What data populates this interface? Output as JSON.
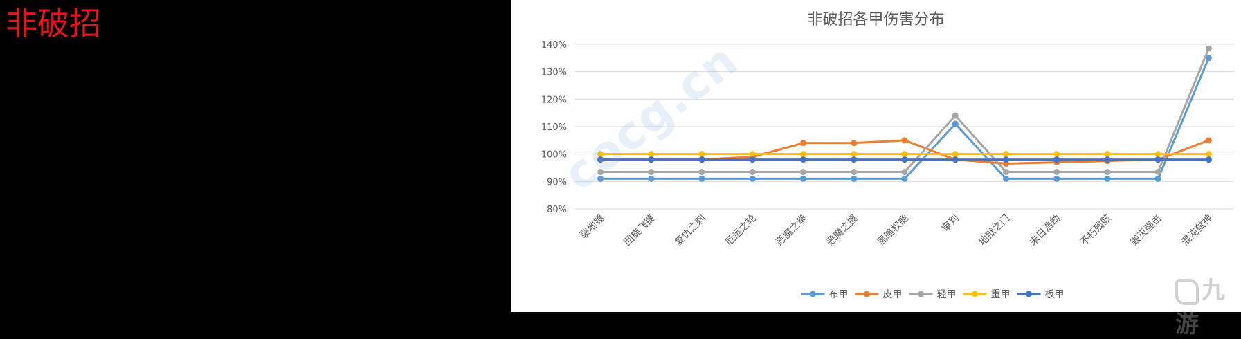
{
  "page": {
    "heading": "非破招",
    "watermark": "cocg.cn",
    "corner_logo": "九游"
  },
  "chart_data": {
    "type": "line",
    "title": "非破招各甲伤害分布",
    "xlabel": "",
    "ylabel": "",
    "categories": [
      "裂地锤",
      "回旋飞镰",
      "复仇之刺",
      "厄运之轮",
      "恶魔之拳",
      "恶魔之握",
      "黑暗权能",
      "审判",
      "地狱之门",
      "末日浩劫",
      "不朽残骸",
      "毁灭强击",
      "混沌弑神"
    ],
    "ylim": [
      80,
      140
    ],
    "yticks": [
      80,
      90,
      100,
      110,
      120,
      130,
      140
    ],
    "ytick_labels": [
      "80%",
      "90%",
      "100%",
      "110%",
      "120%",
      "130%",
      "140%"
    ],
    "grid": true,
    "legend_position": "bottom",
    "series": [
      {
        "name": "布甲",
        "color": "#5b9bd5",
        "values": [
          91,
          91,
          91,
          91,
          91,
          91,
          91,
          111,
          91,
          91,
          91,
          91,
          135
        ]
      },
      {
        "name": "皮甲",
        "color": "#ed7d31",
        "values": [
          98,
          98,
          98,
          99,
          104,
          104,
          105,
          98,
          96.5,
          97,
          97.5,
          98,
          105
        ]
      },
      {
        "name": "轻甲",
        "color": "#a5a5a5",
        "values": [
          93.5,
          93.5,
          93.5,
          93.5,
          93.5,
          93.5,
          93.5,
          114,
          93.5,
          93.5,
          93.5,
          93.5,
          138.5
        ]
      },
      {
        "name": "重甲",
        "color": "#ffc000",
        "values": [
          100,
          100,
          100,
          100,
          100,
          100,
          100,
          100,
          100,
          100,
          100,
          100,
          100
        ]
      },
      {
        "name": "板甲",
        "color": "#4472c4",
        "values": [
          98,
          98,
          98,
          98,
          98,
          98,
          98,
          98,
          98,
          98,
          98,
          98,
          98
        ]
      }
    ]
  }
}
